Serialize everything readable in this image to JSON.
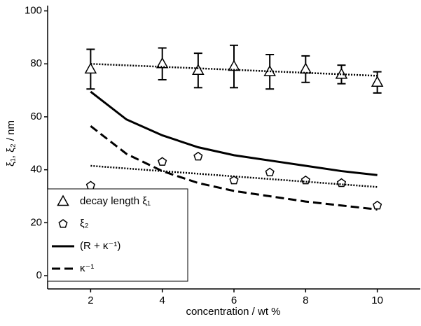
{
  "chart_data": {
    "type": "line",
    "xlabel": "concentration / wt %",
    "ylabel": "ξ₁, ξ₂ / nm",
    "xlim": [
      0.8,
      11.2
    ],
    "ylim": [
      -5,
      102
    ],
    "xticks": [
      2,
      4,
      6,
      8,
      10
    ],
    "yticks": [
      0,
      20,
      40,
      60,
      80,
      100
    ],
    "legend": "lower left",
    "series": [
      {
        "name": "decay length ξ₁",
        "color": "#000000",
        "marker": "triangle",
        "line_style": "none",
        "x": [
          2,
          4,
          5,
          6,
          7,
          8,
          9,
          10
        ],
        "values": [
          78,
          80,
          77.5,
          79,
          77,
          78,
          76,
          73
        ],
        "errors": [
          7.5,
          6,
          6.5,
          8,
          6.5,
          5,
          3.5,
          4
        ]
      },
      {
        "name": "ξ₂",
        "color": "#000000",
        "marker": "pentagon",
        "line_style": "none",
        "x": [
          2,
          4,
          5,
          6,
          7,
          8,
          9,
          10
        ],
        "values": [
          34,
          43,
          45,
          36,
          39,
          36,
          35,
          26.5
        ]
      },
      {
        "name": "(R + κ⁻¹)",
        "color": "#000000",
        "marker": "none",
        "line_style": "solid",
        "x": [
          2,
          3,
          4,
          5,
          6,
          7,
          8,
          9,
          10
        ],
        "values": [
          69.5,
          59,
          53,
          48.5,
          45.5,
          43.5,
          41.5,
          39.5,
          38
        ]
      },
      {
        "name": "κ⁻¹",
        "color": "#000000",
        "marker": "none",
        "line_style": "dashed",
        "x": [
          2,
          3,
          4,
          5,
          6,
          7,
          8,
          9,
          10
        ],
        "values": [
          56.5,
          46,
          39.5,
          35,
          32,
          30,
          28,
          26.5,
          25
        ]
      },
      {
        "color": "#000000",
        "marker": "none",
        "line_style": "dotted",
        "x": [
          2,
          10
        ],
        "values": [
          80,
          75.5
        ]
      },
      {
        "color": "#000000",
        "marker": "none",
        "line_style": "dotted",
        "x": [
          2,
          10
        ],
        "values": [
          41.5,
          33.5
        ]
      }
    ]
  }
}
